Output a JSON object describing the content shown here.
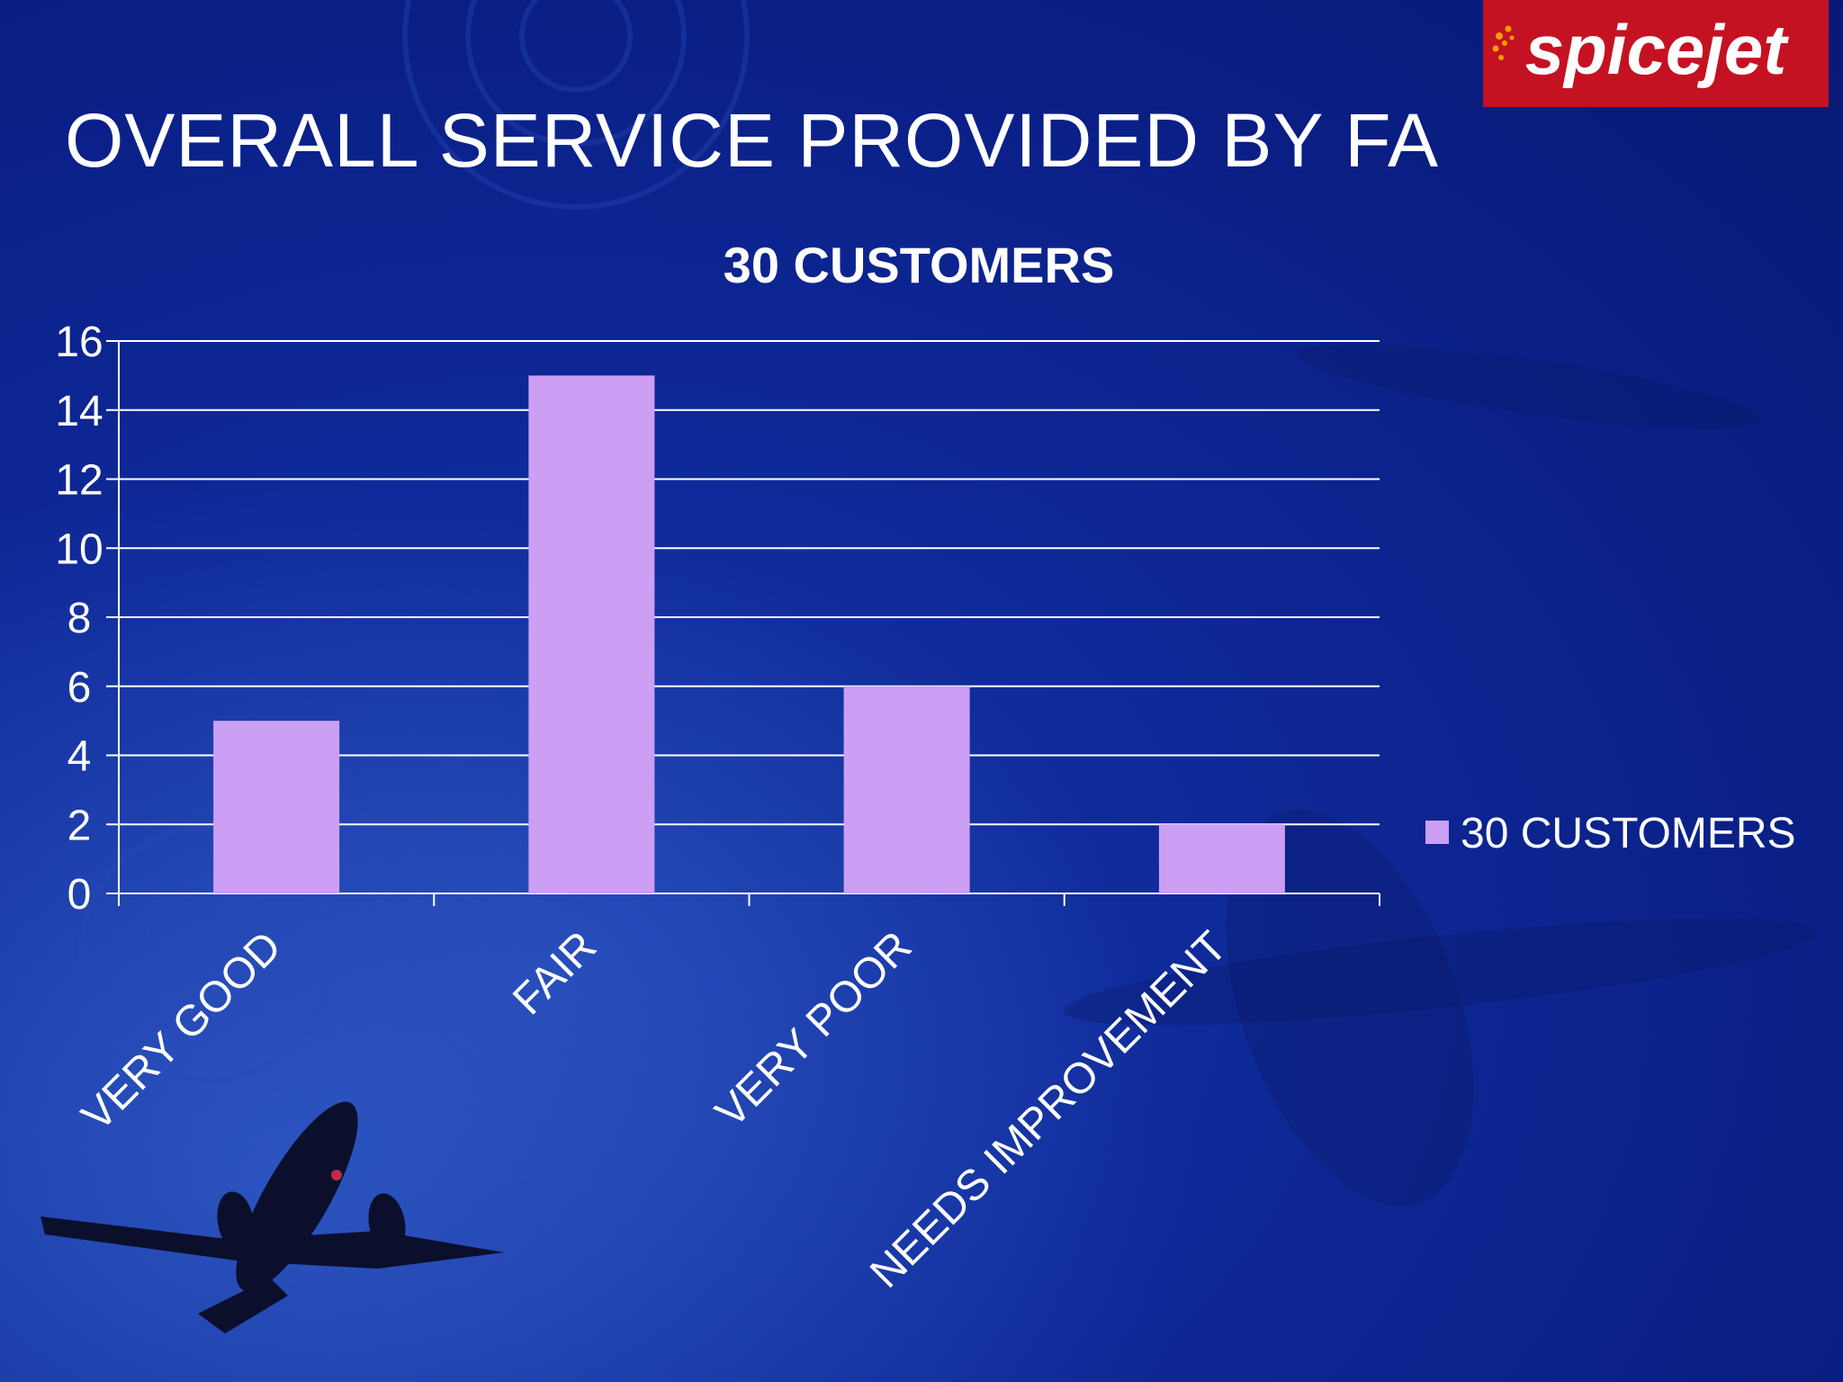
{
  "slide": {
    "title": "OVERALL SERVICE PROVIDED BY FA",
    "logo_text": "spicejet"
  },
  "colors": {
    "background": "#0c2290",
    "bar": "#cc9ff5",
    "text": "#ffffff",
    "gridline": "#ffffff",
    "logo_background": "#c41222"
  },
  "chart_data": {
    "type": "bar",
    "title": "30 CUSTOMERS",
    "categories": [
      "VERY GOOD",
      "FAIR",
      "VERY POOR",
      "NEEDS IMPROVEMENT"
    ],
    "series": [
      {
        "name": "30 CUSTOMERS",
        "values": [
          5,
          15,
          6,
          2
        ]
      }
    ],
    "ylim": [
      0,
      16
    ],
    "yticks": [
      0,
      2,
      4,
      6,
      8,
      10,
      12,
      14,
      16
    ],
    "xlabel": "",
    "ylabel": "",
    "grid": true,
    "legend_position": "right"
  }
}
